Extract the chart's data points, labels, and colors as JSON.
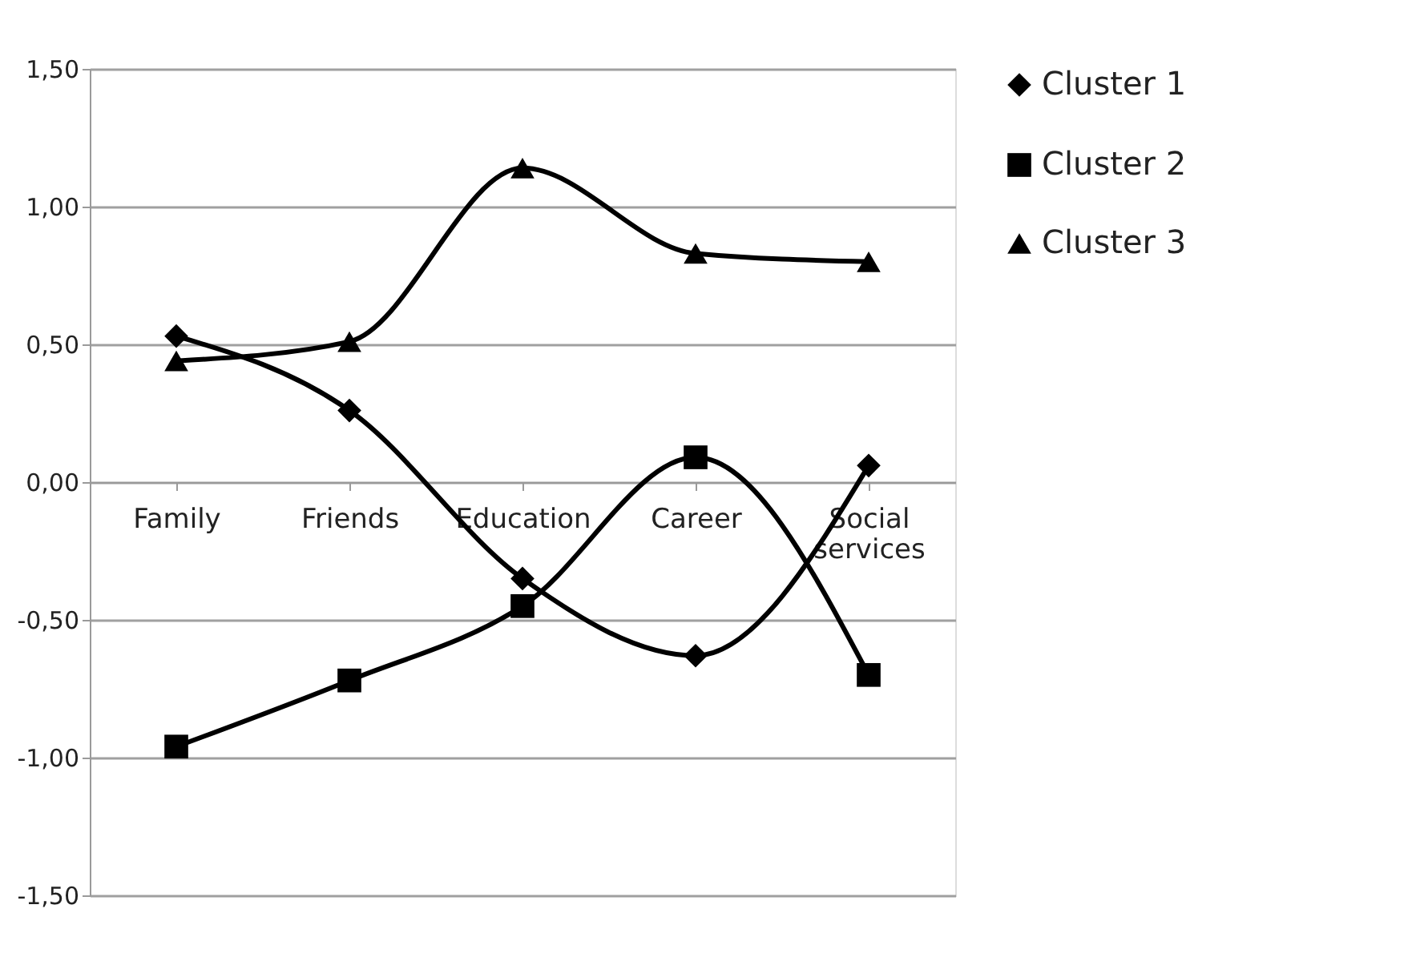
{
  "chart_data": {
    "type": "line",
    "categories": [
      "Family",
      "Friends",
      "Education",
      "Career",
      "Social services"
    ],
    "series": [
      {
        "name": "Cluster 1",
        "color": "#000000",
        "marker": "diamond",
        "values": [
          0.53,
          0.26,
          -0.35,
          -0.63,
          0.06
        ]
      },
      {
        "name": "Cluster 2",
        "color": "#000000",
        "marker": "square",
        "values": [
          -0.96,
          -0.72,
          -0.45,
          0.09,
          -0.7
        ]
      },
      {
        "name": "Cluster 3",
        "color": "#000000",
        "marker": "triangle",
        "values": [
          0.44,
          0.51,
          1.14,
          0.83,
          0.8
        ]
      }
    ],
    "ylim": [
      -1.5,
      1.5
    ],
    "yticks": [
      {
        "value": -1.5,
        "label": "-1,50"
      },
      {
        "value": -1.0,
        "label": "-1,00"
      },
      {
        "value": -0.5,
        "label": "-0,50"
      },
      {
        "value": 0,
        "label": "0,00"
      },
      {
        "value": 0.5,
        "label": "0,50"
      },
      {
        "value": 1.0,
        "label": "1,00"
      },
      {
        "value": 1.5,
        "label": "1,50"
      }
    ],
    "grid": "y",
    "legend": "right",
    "line_style": "solid"
  }
}
